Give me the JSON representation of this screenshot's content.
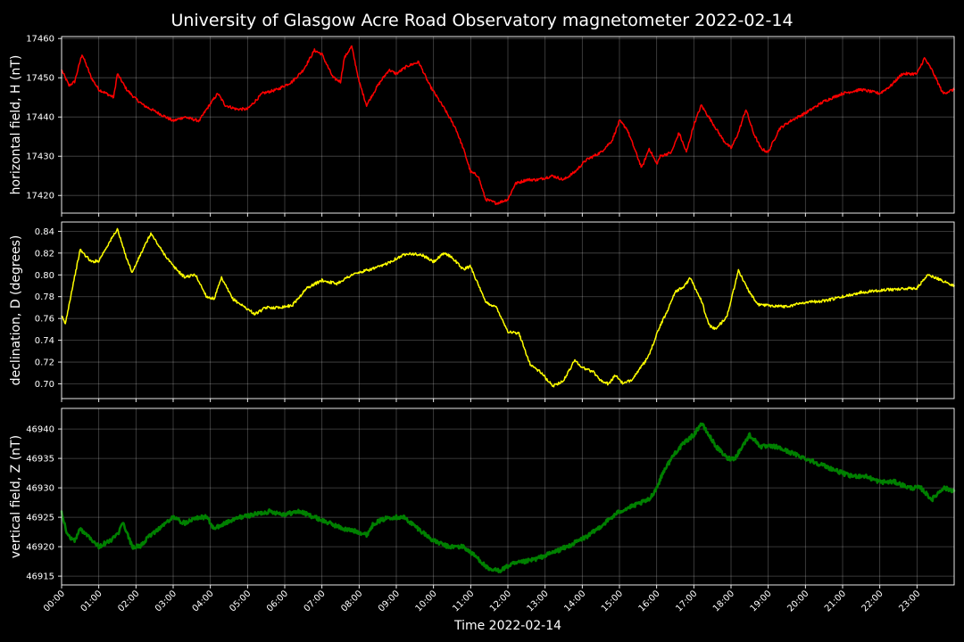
{
  "chart_data": [
    {
      "type": "line",
      "title": "University of Glasgow Acre Road Observatory magnetometer 2022-02-14",
      "xlabel": "Time 2022-02-14",
      "ylabel": "horizontal field, H (nT)",
      "ylim": [
        17415.5,
        17460.5
      ],
      "yticks": [
        17420,
        17430,
        17440,
        17450,
        17460
      ],
      "xticks": [
        "00:00",
        "01:00",
        "02:00",
        "03:00",
        "04:00",
        "05:00",
        "06:00",
        "07:00",
        "08:00",
        "09:00",
        "10:00",
        "11:00",
        "12:00",
        "13:00",
        "14:00",
        "15:00",
        "16:00",
        "17:00",
        "18:00",
        "19:00",
        "20:00",
        "21:00",
        "22:00",
        "23:00"
      ],
      "grid": true,
      "color": "#ff0000",
      "series": [
        {
          "x": [
            0,
            0.2,
            0.35,
            0.55,
            0.8,
            1.0,
            1.2,
            1.4,
            1.5,
            1.75,
            1.95,
            2.2,
            2.6,
            3.0,
            3.3,
            3.7,
            3.9,
            4.2,
            4.4,
            4.7,
            5.0,
            5.4,
            5.8,
            6.2,
            6.5,
            6.8,
            7.0,
            7.3,
            7.5,
            7.6,
            7.8,
            8.0,
            8.2,
            8.5,
            8.8,
            9.0,
            9.3,
            9.6,
            9.9,
            10.3,
            10.6,
            10.8,
            11.0,
            11.2,
            11.4,
            11.7,
            12.0,
            12.2,
            12.5,
            12.8,
            13.2,
            13.5,
            13.8,
            14.1,
            14.5,
            14.8,
            15.0,
            15.2,
            15.4,
            15.6,
            15.8,
            16.0,
            16.1,
            16.4,
            16.6,
            16.8,
            17.0,
            17.2,
            17.4,
            17.6,
            17.8,
            18.0,
            18.2,
            18.4,
            18.6,
            18.8,
            19.0,
            19.3,
            19.6,
            20.0,
            20.5,
            21.0,
            21.5,
            22.0,
            22.3,
            22.6,
            23.0,
            23.2,
            23.4,
            23.7,
            24.0
          ],
          "y": [
            17452,
            17448,
            17449,
            17456,
            17450,
            17447,
            17446,
            17445,
            17451,
            17447,
            17445,
            17443,
            17441,
            17439,
            17440,
            17439,
            17442,
            17446,
            17443,
            17442,
            17442,
            17446,
            17447,
            17449,
            17452,
            17457,
            17456,
            17450,
            17449,
            17455,
            17458,
            17449,
            17443,
            17448,
            17452,
            17451,
            17453,
            17454,
            17448,
            17442,
            17437,
            17432,
            17426,
            17425,
            17419,
            17418,
            17419,
            17423,
            17424,
            17424,
            17425,
            17424,
            17426,
            17429,
            17431,
            17434,
            17439,
            17437,
            17432,
            17427,
            17432,
            17428,
            17430,
            17431,
            17436,
            17431,
            17438,
            17443,
            17440,
            17437,
            17434,
            17432,
            17436,
            17442,
            17436,
            17432,
            17431,
            17437,
            17439,
            17441,
            17444,
            17446,
            17447,
            17446,
            17448,
            17451,
            17451,
            17455,
            17452,
            17446,
            17447
          ]
        }
      ]
    },
    {
      "type": "line",
      "xlabel": "Time 2022-02-14",
      "ylabel": "declination, D (degrees)",
      "ylim": [
        0.6865,
        0.8485
      ],
      "yticks": [
        0.7,
        0.72,
        0.74,
        0.76,
        0.78,
        0.8,
        0.82,
        0.84
      ],
      "yticklabels": [
        "0.70",
        "0.72",
        "0.74",
        "0.76",
        "0.78",
        "0.80",
        "0.82",
        "0.84"
      ],
      "xticks": [
        "00:00",
        "01:00",
        "02:00",
        "03:00",
        "04:00",
        "05:00",
        "06:00",
        "07:00",
        "08:00",
        "09:00",
        "10:00",
        "11:00",
        "12:00",
        "13:00",
        "14:00",
        "15:00",
        "16:00",
        "17:00",
        "18:00",
        "19:00",
        "20:00",
        "21:00",
        "22:00",
        "23:00"
      ],
      "grid": true,
      "color": "#ffff00",
      "series": [
        {
          "x": [
            0,
            0.1,
            0.3,
            0.5,
            0.8,
            1.0,
            1.2,
            1.5,
            1.7,
            1.9,
            2.1,
            2.4,
            2.7,
            3.0,
            3.3,
            3.6,
            3.9,
            4.1,
            4.3,
            4.6,
            4.9,
            5.2,
            5.5,
            5.8,
            6.2,
            6.6,
            7.0,
            7.4,
            7.8,
            8.2,
            8.6,
            9.0,
            9.3,
            9.7,
            10.0,
            10.3,
            10.5,
            10.8,
            11.0,
            11.2,
            11.4,
            11.7,
            12.0,
            12.3,
            12.6,
            12.9,
            13.2,
            13.5,
            13.8,
            14.0,
            14.3,
            14.5,
            14.7,
            14.9,
            15.1,
            15.3,
            15.6,
            15.8,
            16.0,
            16.3,
            16.5,
            16.7,
            16.9,
            17.2,
            17.4,
            17.6,
            17.9,
            18.2,
            18.4,
            18.7,
            19.0,
            19.5,
            20.0,
            20.5,
            21.0,
            21.5,
            22.0,
            22.5,
            23.0,
            23.3,
            23.6,
            24.0
          ],
          "y": [
            0.762,
            0.755,
            0.79,
            0.823,
            0.812,
            0.813,
            0.825,
            0.842,
            0.82,
            0.802,
            0.817,
            0.838,
            0.822,
            0.808,
            0.798,
            0.8,
            0.78,
            0.778,
            0.797,
            0.778,
            0.771,
            0.764,
            0.77,
            0.77,
            0.772,
            0.788,
            0.795,
            0.792,
            0.8,
            0.804,
            0.808,
            0.815,
            0.82,
            0.818,
            0.812,
            0.82,
            0.816,
            0.805,
            0.808,
            0.791,
            0.775,
            0.77,
            0.748,
            0.746,
            0.718,
            0.71,
            0.698,
            0.703,
            0.722,
            0.715,
            0.711,
            0.703,
            0.7,
            0.708,
            0.7,
            0.703,
            0.716,
            0.726,
            0.746,
            0.768,
            0.785,
            0.788,
            0.797,
            0.777,
            0.754,
            0.75,
            0.763,
            0.804,
            0.79,
            0.773,
            0.772,
            0.771,
            0.775,
            0.776,
            0.78,
            0.784,
            0.786,
            0.787,
            0.788,
            0.8,
            0.796,
            0.79
          ]
        }
      ]
    },
    {
      "type": "line",
      "xlabel": "Time 2022-02-14",
      "ylabel": "vertical field, Z (nT)",
      "ylim": [
        46913.5,
        46943.5
      ],
      "yticks": [
        46915,
        46920,
        46925,
        46930,
        46935,
        46940
      ],
      "xticks": [
        "00:00",
        "01:00",
        "02:00",
        "03:00",
        "04:00",
        "05:00",
        "06:00",
        "07:00",
        "08:00",
        "09:00",
        "10:00",
        "11:00",
        "12:00",
        "13:00",
        "14:00",
        "15:00",
        "16:00",
        "17:00",
        "18:00",
        "19:00",
        "20:00",
        "21:00",
        "22:00",
        "23:00"
      ],
      "grid": true,
      "color": "#008000",
      "series": [
        {
          "x": [
            0,
            0.15,
            0.35,
            0.5,
            0.7,
            1.0,
            1.3,
            1.5,
            1.65,
            1.9,
            2.1,
            2.4,
            2.8,
            3.0,
            3.3,
            3.6,
            3.9,
            4.1,
            4.4,
            4.8,
            5.2,
            5.6,
            6.0,
            6.4,
            6.8,
            7.2,
            7.6,
            8.0,
            8.2,
            8.4,
            8.8,
            9.2,
            9.6,
            10.0,
            10.4,
            10.8,
            11.2,
            11.5,
            11.8,
            12.1,
            12.5,
            12.8,
            13.2,
            13.6,
            13.9,
            14.2,
            14.6,
            15.0,
            15.4,
            15.8,
            16.0,
            16.2,
            16.5,
            16.8,
            17.0,
            17.2,
            17.4,
            17.6,
            17.9,
            18.1,
            18.3,
            18.5,
            18.8,
            19.2,
            19.6,
            20.0,
            20.4,
            20.8,
            21.2,
            21.6,
            22.0,
            22.4,
            22.8,
            23.1,
            23.4,
            23.7,
            24.0
          ],
          "y": [
            46926,
            46922,
            46921,
            46923,
            46922,
            46920,
            46921,
            46922,
            46924,
            46920,
            46920,
            46922,
            46924,
            46925,
            46924,
            46925,
            46925,
            46923,
            46924,
            46925,
            46925.5,
            46926,
            46925.5,
            46926,
            46925,
            46924,
            46923,
            46922.5,
            46922,
            46924,
            46925,
            46925,
            46923,
            46921,
            46920,
            46920,
            46918,
            46916,
            46916,
            46917,
            46917.5,
            46918,
            46919,
            46920,
            46921,
            46922,
            46924,
            46926,
            46927,
            46928,
            46930,
            46933,
            46936,
            46938,
            46939,
            46941,
            46939,
            46937,
            46935,
            46935,
            46937,
            46939,
            46937,
            46937,
            46936,
            46935,
            46934,
            46933,
            46932,
            46932,
            46931,
            46931,
            46930,
            46930,
            46928,
            46930,
            46929.5
          ]
        }
      ]
    }
  ]
}
